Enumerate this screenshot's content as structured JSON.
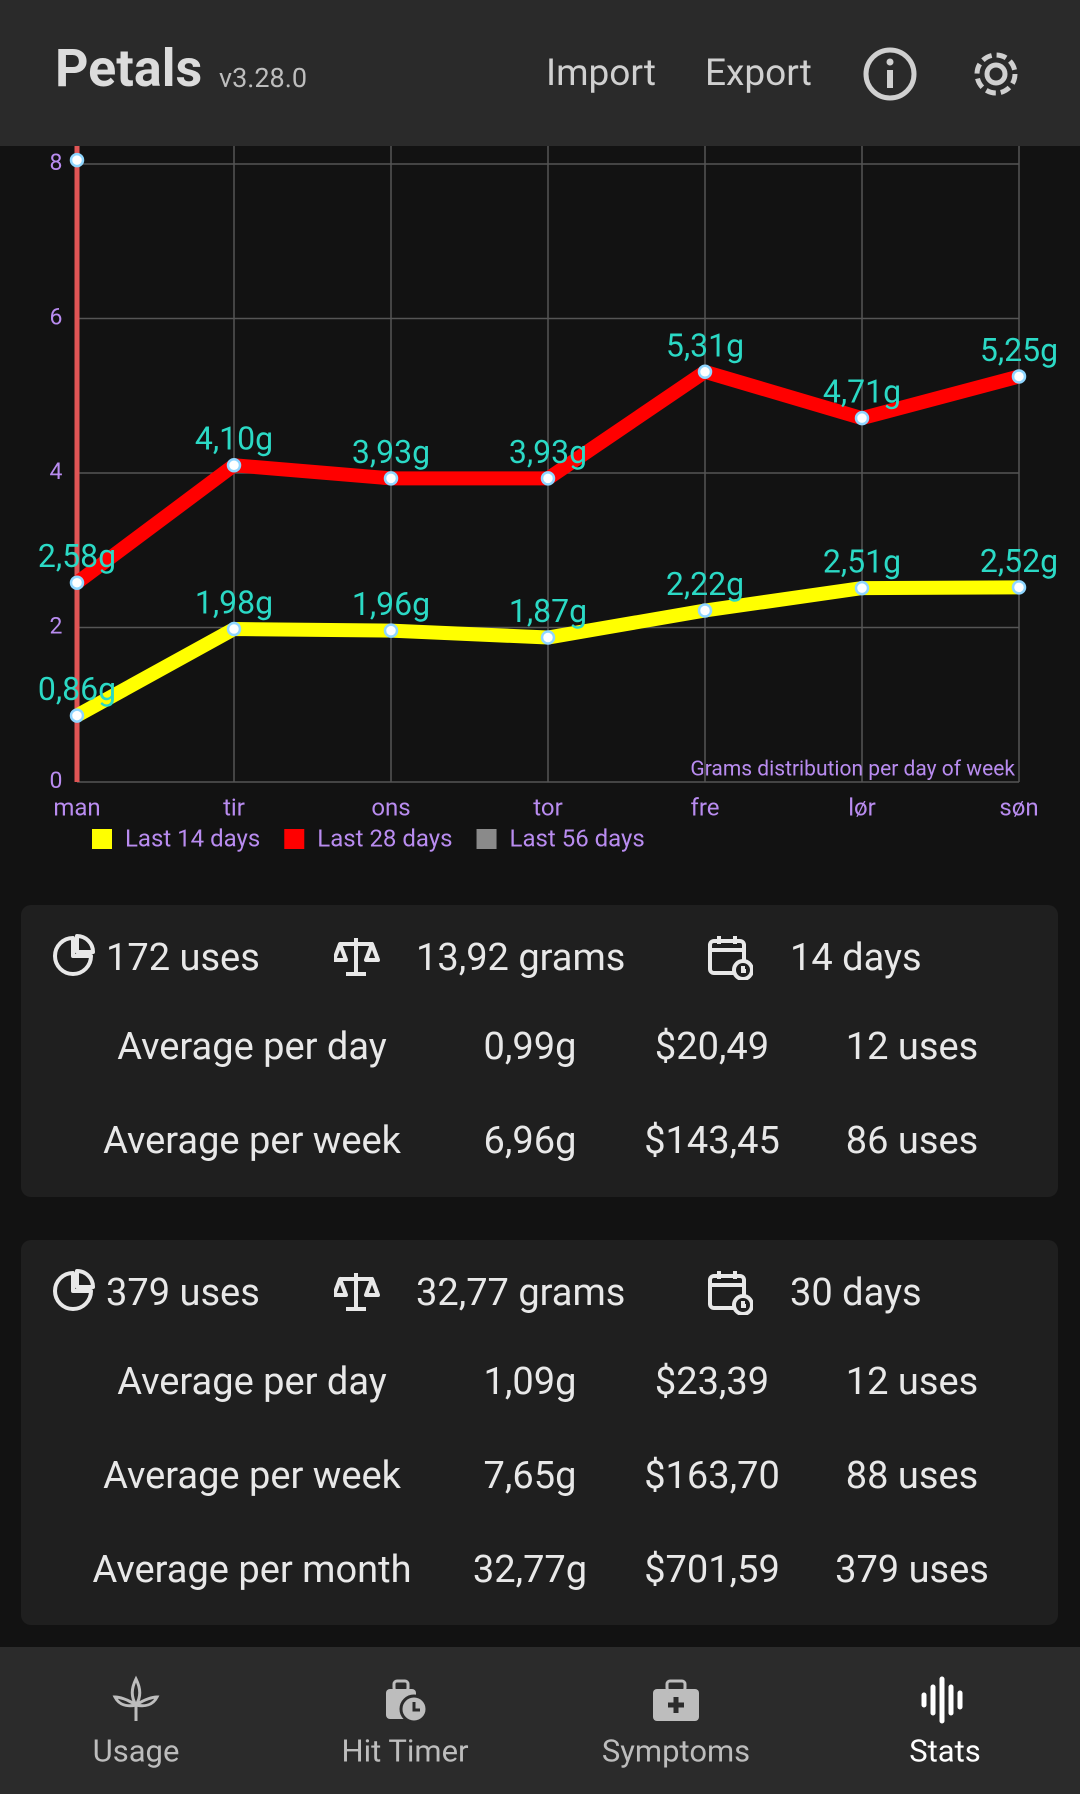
{
  "header": {
    "title": "Petals",
    "version": "v3.28.0",
    "actions": [
      "Import",
      "Export"
    ]
  },
  "chart_data": {
    "type": "line",
    "categories": [
      "man",
      "tir",
      "ons",
      "tor",
      "fre",
      "lør",
      "søn"
    ],
    "series": [
      {
        "name": "Last 14 days",
        "color": "#ffff00",
        "values": [
          0.86,
          1.98,
          1.96,
          1.87,
          2.22,
          2.51,
          2.52
        ],
        "value_labels": [
          "0,86g",
          "1,98g",
          "1,96g",
          "1,87g",
          "2,22g",
          "2,51g",
          "2,52g"
        ]
      },
      {
        "name": "Last 28 days",
        "color": "#ff0000",
        "values": [
          2.58,
          4.1,
          3.93,
          3.93,
          5.31,
          4.71,
          5.25
        ],
        "value_labels": [
          "2,58g",
          "4,10g",
          "3,93g",
          "3,93g",
          "5,31g",
          "4,71g",
          "5,25g"
        ]
      },
      {
        "name": "Last 56 days",
        "color": "#8a8a8a",
        "values": [
          8.05,
          null,
          null,
          null,
          null,
          null,
          null
        ]
      }
    ],
    "ylim": [
      0,
      8.2
    ],
    "yticks": [
      0,
      2,
      4,
      6,
      8
    ],
    "grid": true,
    "annotation": "Grams distribution per day of week"
  },
  "cards": [
    {
      "summary": [
        "172 uses",
        "13,92 grams",
        "14 days"
      ],
      "rows": [
        [
          "Average per day",
          "0,99g",
          "$20,49",
          "12 uses"
        ],
        [
          "Average per week",
          "6,96g",
          "$143,45",
          "86 uses"
        ]
      ]
    },
    {
      "summary": [
        "379 uses",
        "32,77 grams",
        "30 days"
      ],
      "rows": [
        [
          "Average per day",
          "1,09g",
          "$23,39",
          "12 uses"
        ],
        [
          "Average per week",
          "7,65g",
          "$163,70",
          "88 uses"
        ],
        [
          "Average per month",
          "32,77g",
          "$701,59",
          "379 uses"
        ]
      ]
    }
  ],
  "nav": [
    "Usage",
    "Hit Timer",
    "Symptoms",
    "Stats"
  ]
}
